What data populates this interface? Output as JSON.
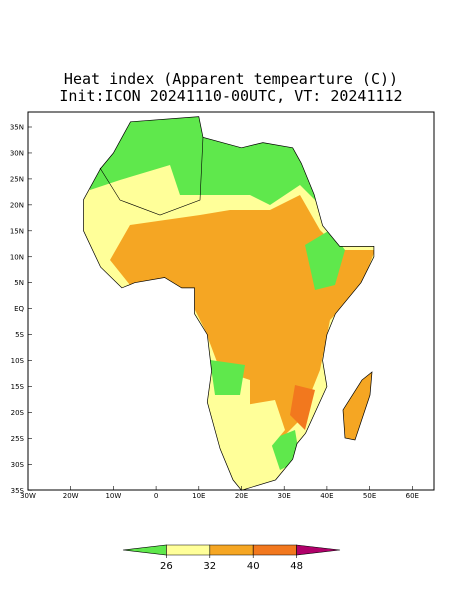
{
  "title": [
    "Heat index (Apparent tempearture (C))",
    "Init:ICON 20241110-00UTC, VT: 20241112"
  ],
  "map": {
    "lat_labels": [
      "35N",
      "30N",
      "25N",
      "20N",
      "15N",
      "10N",
      "5N",
      "EQ",
      "5S",
      "10S",
      "15S",
      "20S",
      "25S",
      "30S",
      "35S"
    ],
    "lon_labels": [
      "30W",
      "20W",
      "10W",
      "0",
      "10E",
      "20E",
      "30E",
      "40E",
      "50E",
      "60E"
    ]
  },
  "colorbar": {
    "ticks": [
      26,
      32,
      40,
      48
    ],
    "colors": [
      "#5fe84c",
      "#ffff99",
      "#f5a623",
      "#f2781e",
      "#b0006a"
    ]
  }
}
